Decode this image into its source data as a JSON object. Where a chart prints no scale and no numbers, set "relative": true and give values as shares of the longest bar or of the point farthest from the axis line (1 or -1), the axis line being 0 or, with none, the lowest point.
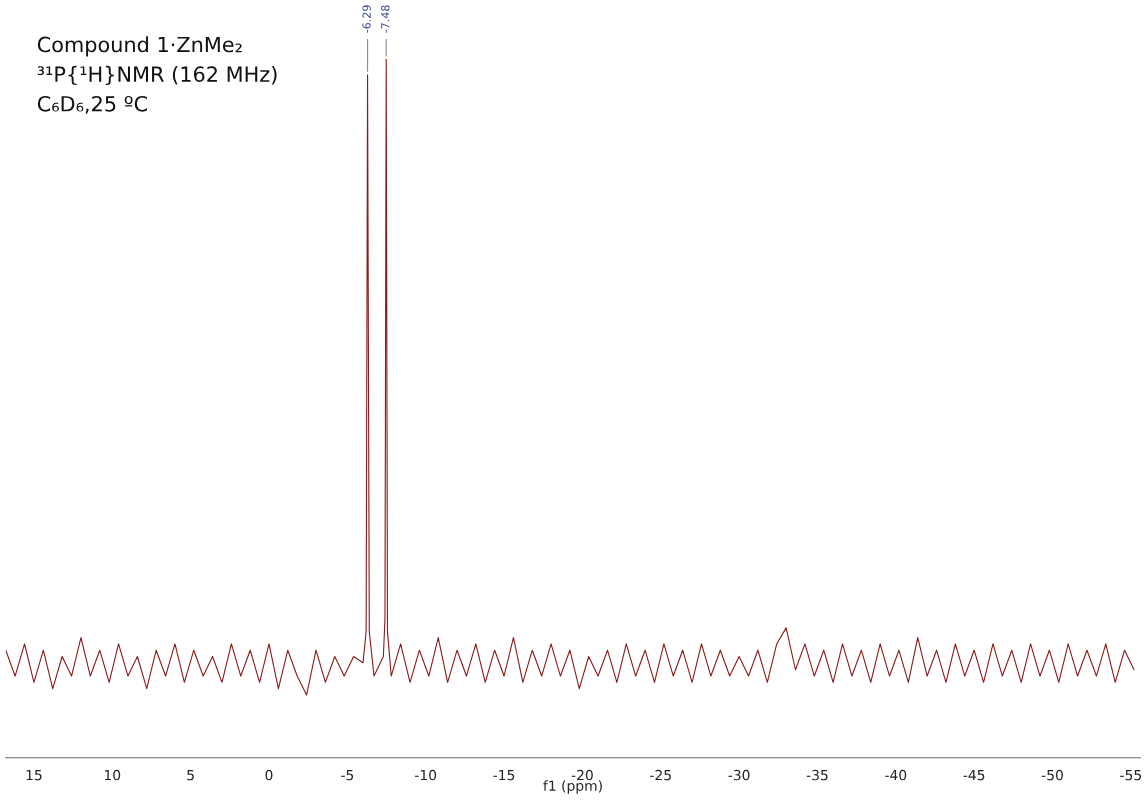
{
  "chart_data": {
    "type": "line",
    "relative": true,
    "title": "Compound 1·ZnMe₂",
    "subtitle": "³¹P{¹H}NMR (162 MHz)",
    "annotations": [
      "C₆D₆,25 ºC",
      {
        "text": "-6.29",
        "x": -6.29,
        "y": 0.978
      },
      {
        "text": "-7.48",
        "x": -7.48,
        "y": 1
      }
    ],
    "xlabel": "f1 (ppm)",
    "xlim": [
      16.8,
      -55.6
    ],
    "xticks": [
      15,
      10,
      5,
      0,
      -5,
      -10,
      -15,
      -20,
      -25,
      -30,
      -35,
      -40,
      -45,
      -50,
      -55
    ],
    "tick_labels": "x",
    "grid": false,
    "legend": false,
    "marker": "none",
    "line_style": "solid",
    "series": [
      {
        "color": "#8b1a1a",
        "x": [
          16.8,
          16.2,
          15.6,
          15.0,
          14.4,
          13.8,
          13.2,
          12.6,
          12.0,
          11.4,
          10.8,
          10.2,
          9.6,
          9.0,
          8.4,
          7.8,
          7.2,
          6.6,
          6.0,
          5.4,
          4.8,
          4.2,
          3.6,
          3.0,
          2.4,
          1.8,
          1.2,
          0.6,
          0.0,
          -0.6,
          -1.2,
          -1.8,
          -2.4,
          -3.0,
          -3.6,
          -4.2,
          -4.8,
          -5.4,
          -6.0,
          -6.2,
          -6.29,
          -6.4,
          -6.7,
          -7.3,
          -7.4,
          -7.48,
          -7.56,
          -7.8,
          -8.4,
          -9.0,
          -9.6,
          -10.2,
          -10.8,
          -11.4,
          -12.0,
          -12.6,
          -13.2,
          -13.8,
          -14.4,
          -15.0,
          -15.6,
          -16.2,
          -16.8,
          -17.4,
          -18.0,
          -18.6,
          -19.2,
          -19.8,
          -20.4,
          -21.0,
          -21.6,
          -22.2,
          -22.8,
          -23.4,
          -24.0,
          -24.6,
          -25.2,
          -25.8,
          -26.4,
          -27.0,
          -27.6,
          -28.2,
          -28.8,
          -29.4,
          -30.0,
          -30.6,
          -31.2,
          -31.8,
          -32.4,
          -33.0,
          -33.6,
          -34.2,
          -34.8,
          -35.4,
          -36.0,
          -36.6,
          -37.2,
          -37.8,
          -38.4,
          -39.0,
          -39.6,
          -40.2,
          -40.8,
          -41.4,
          -42.0,
          -42.6,
          -43.2,
          -43.8,
          -44.4,
          -45.0,
          -45.6,
          -46.2,
          -46.8,
          -47.4,
          -48.0,
          -48.6,
          -49.2,
          -49.8,
          -50.4,
          -51.0,
          -51.6,
          -52.2,
          -52.8,
          -53.4,
          -54.0,
          -54.6,
          -55.2
        ],
        "values": [
          0.154,
          0.117,
          0.163,
          0.108,
          0.154,
          0.099,
          0.145,
          0.117,
          0.172,
          0.117,
          0.154,
          0.108,
          0.163,
          0.117,
          0.145,
          0.099,
          0.154,
          0.117,
          0.163,
          0.108,
          0.154,
          0.117,
          0.145,
          0.108,
          0.163,
          0.117,
          0.154,
          0.108,
          0.163,
          0.099,
          0.154,
          0.117,
          0.09,
          0.154,
          0.108,
          0.145,
          0.117,
          0.145,
          0.136,
          0.181,
          0.978,
          0.181,
          0.117,
          0.145,
          0.199,
          1,
          0.181,
          0.117,
          0.163,
          0.108,
          0.154,
          0.117,
          0.172,
          0.108,
          0.154,
          0.117,
          0.163,
          0.108,
          0.154,
          0.117,
          0.172,
          0.108,
          0.154,
          0.117,
          0.163,
          0.117,
          0.154,
          0.099,
          0.145,
          0.117,
          0.154,
          0.108,
          0.163,
          0.117,
          0.154,
          0.108,
          0.163,
          0.117,
          0.154,
          0.108,
          0.163,
          0.117,
          0.154,
          0.117,
          0.145,
          0.117,
          0.154,
          0.108,
          0.163,
          0.186,
          0.126,
          0.163,
          0.117,
          0.154,
          0.108,
          0.163,
          0.117,
          0.154,
          0.108,
          0.163,
          0.117,
          0.154,
          0.108,
          0.172,
          0.117,
          0.154,
          0.108,
          0.163,
          0.117,
          0.154,
          0.108,
          0.163,
          0.117,
          0.154,
          0.108,
          0.163,
          0.117,
          0.154,
          0.108,
          0.163,
          0.117,
          0.154,
          0.117,
          0.163,
          0.108,
          0.154,
          0.126
        ]
      }
    ]
  }
}
